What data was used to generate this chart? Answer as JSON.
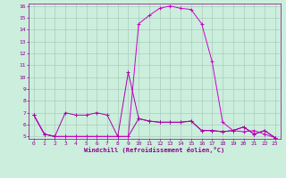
{
  "xlabel": "Windchill (Refroidissement éolien,°C)",
  "line1": {
    "x": [
      0,
      1,
      2,
      3,
      4,
      5,
      6,
      7,
      8,
      9,
      10,
      11,
      12,
      13,
      14,
      15,
      16,
      17,
      18,
      19,
      20,
      21,
      22,
      23
    ],
    "y": [
      6.8,
      5.2,
      5.0,
      7.0,
      6.8,
      6.8,
      7.0,
      6.8,
      5.0,
      10.4,
      6.5,
      6.3,
      6.2,
      6.2,
      6.2,
      6.3,
      5.5,
      5.5,
      5.4,
      5.5,
      5.8,
      5.2,
      5.5,
      4.9
    ],
    "color": "#aa00aa"
  },
  "line2": {
    "x": [
      0,
      1,
      2,
      3,
      4,
      5,
      6,
      7,
      8,
      9,
      10,
      11,
      12,
      13,
      14,
      15,
      16,
      17,
      18,
      19,
      20,
      21,
      22,
      23
    ],
    "y": [
      6.8,
      5.2,
      5.0,
      5.0,
      5.0,
      5.0,
      5.0,
      5.0,
      5.0,
      5.0,
      14.5,
      15.2,
      15.8,
      16.0,
      15.8,
      15.7,
      14.5,
      11.3,
      6.2,
      5.5,
      5.4,
      5.5,
      5.2,
      4.9
    ],
    "color": "#cc00cc"
  },
  "line3": {
    "x": [
      0,
      1,
      2,
      3,
      4,
      5,
      6,
      7,
      8,
      9,
      10,
      11,
      12,
      13,
      14,
      15,
      16,
      17,
      18,
      19,
      20,
      21,
      22,
      23
    ],
    "y": [
      6.8,
      5.2,
      5.0,
      5.0,
      5.0,
      5.0,
      5.0,
      5.0,
      5.0,
      5.0,
      6.5,
      6.3,
      6.2,
      6.2,
      6.2,
      6.3,
      5.5,
      5.5,
      5.4,
      5.5,
      5.8,
      5.2,
      5.5,
      4.9
    ],
    "color": "#990099"
  },
  "bg_color": "#cceedd",
  "grid_color": "#aaccbb",
  "text_color": "#880088",
  "xlim": [
    -0.5,
    23.5
  ],
  "ylim": [
    4.8,
    16.2
  ],
  "yticks": [
    5,
    6,
    7,
    8,
    9,
    10,
    11,
    12,
    13,
    14,
    15,
    16
  ],
  "xticks": [
    0,
    1,
    2,
    3,
    4,
    5,
    6,
    7,
    8,
    9,
    10,
    11,
    12,
    13,
    14,
    15,
    16,
    17,
    18,
    19,
    20,
    21,
    22,
    23
  ]
}
